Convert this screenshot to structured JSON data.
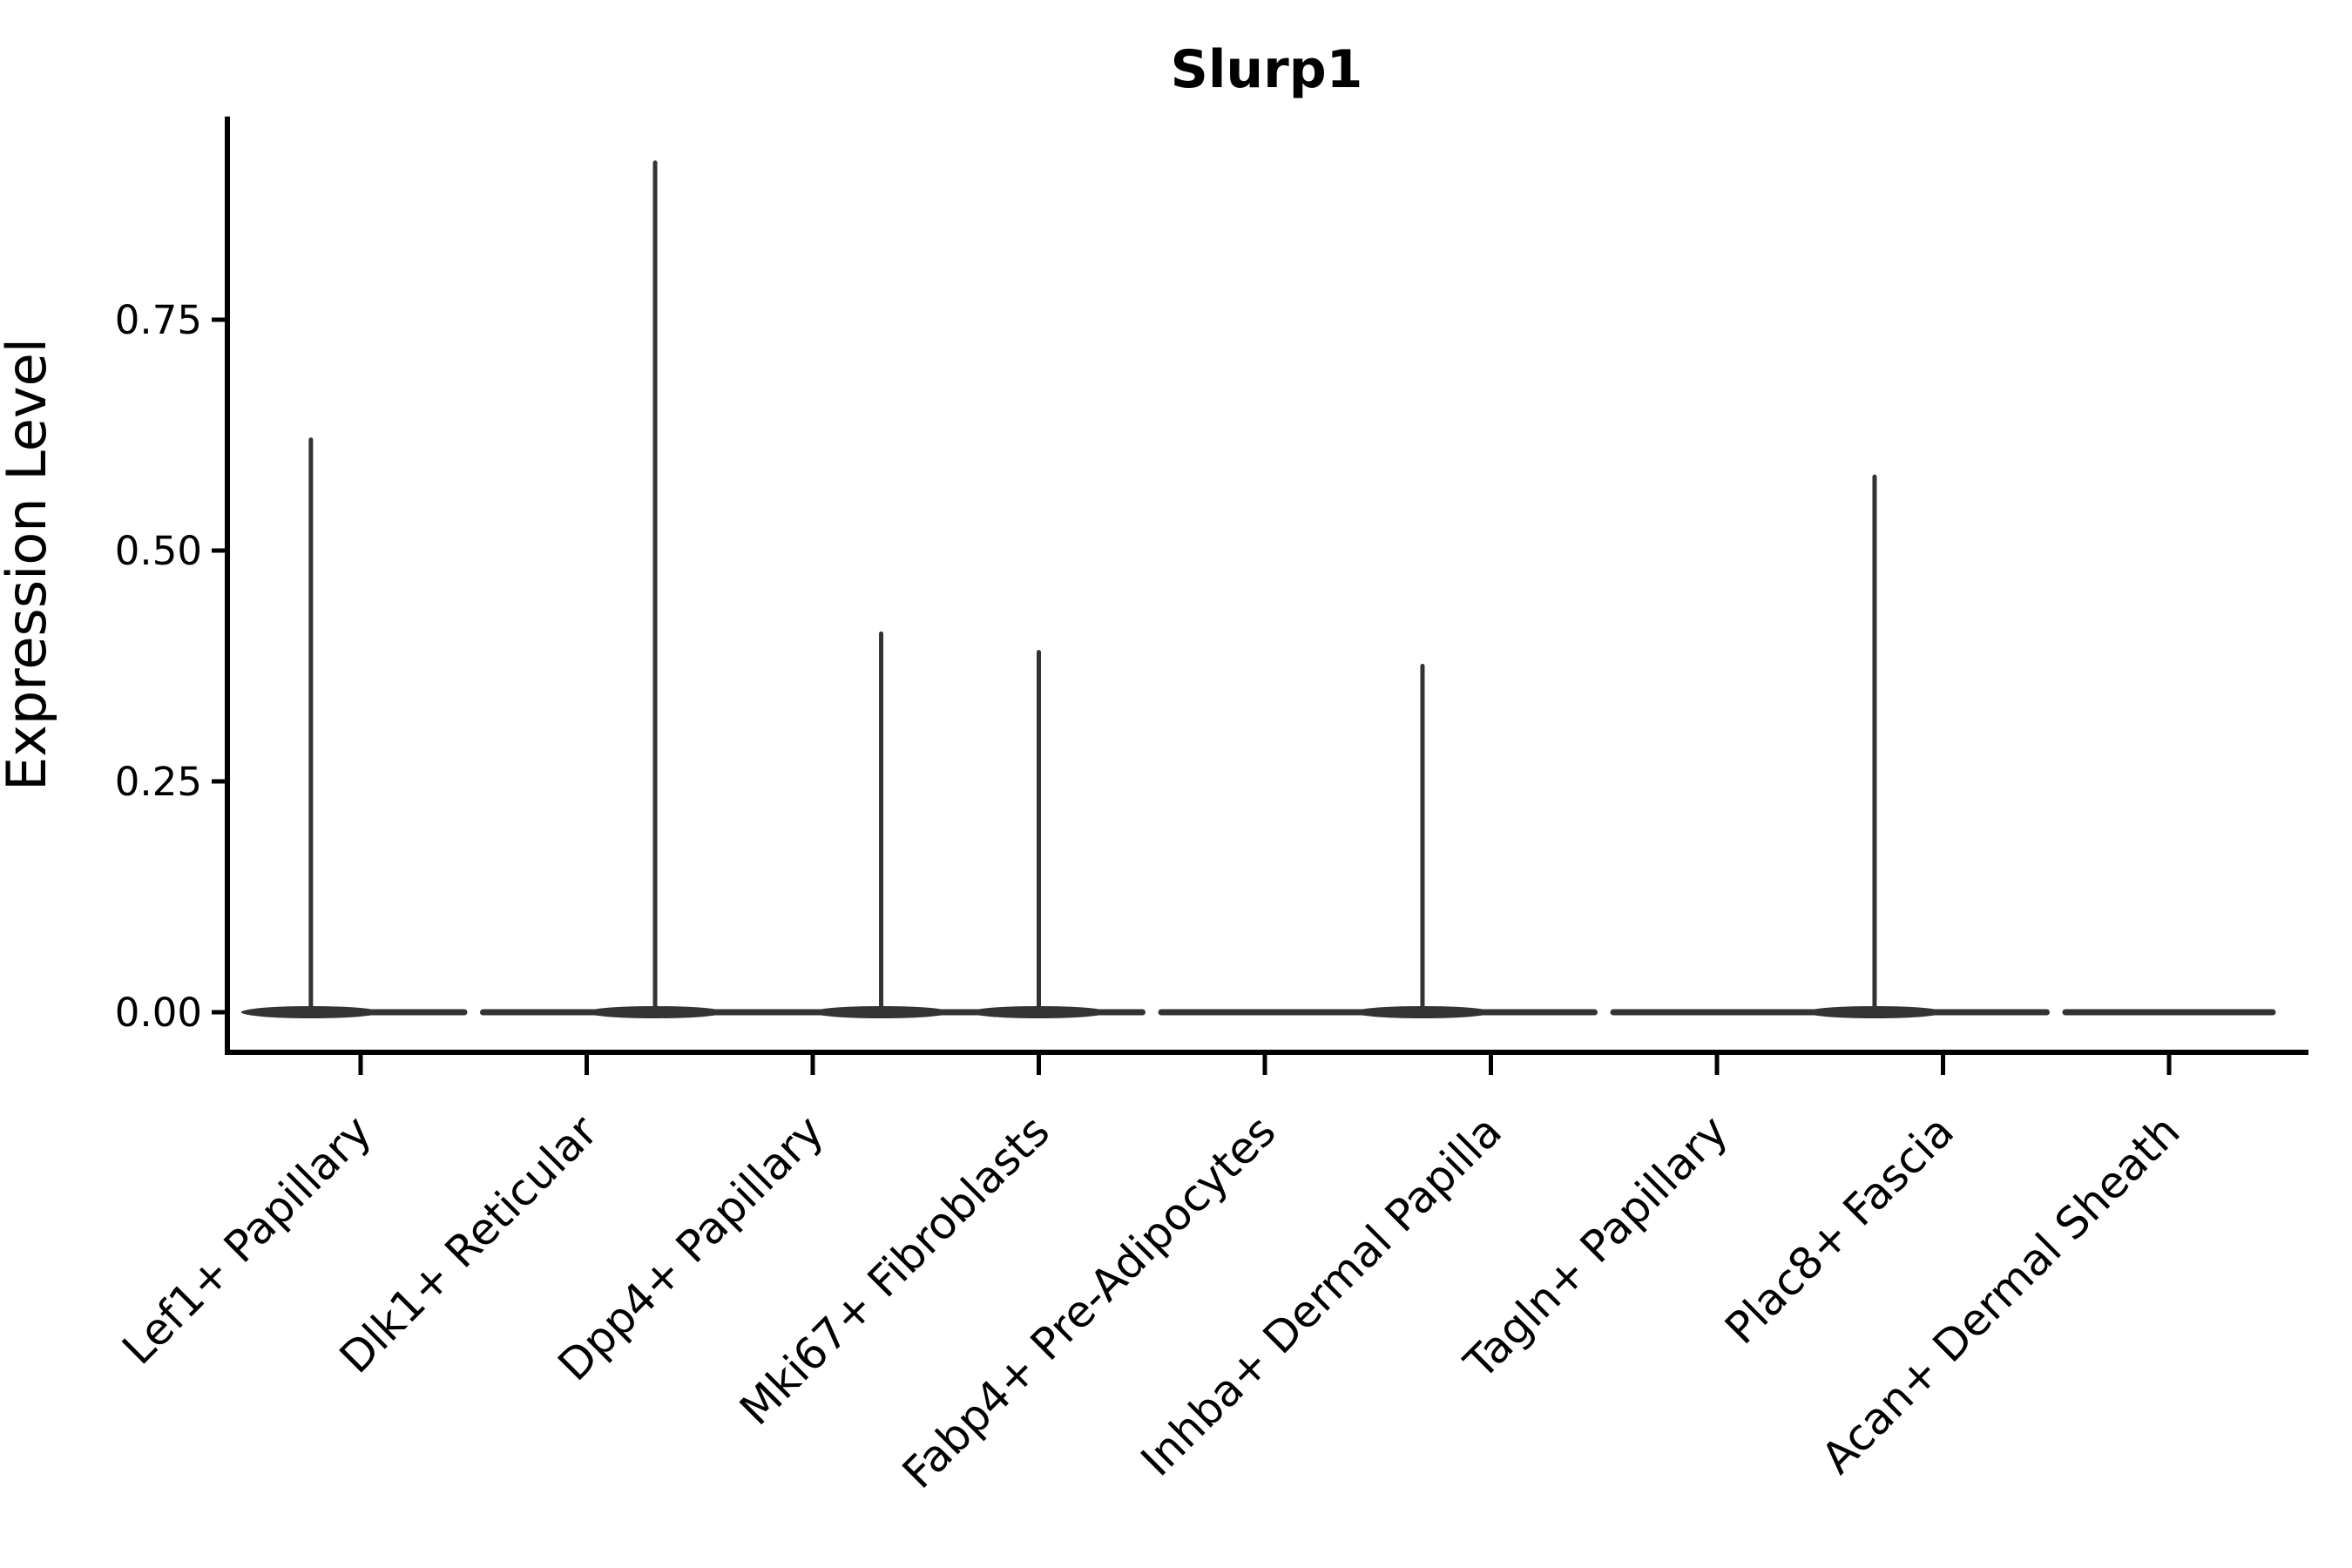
{
  "chart_data": {
    "type": "violin",
    "title": "Slurp1",
    "xlabel": "",
    "ylabel": "Expression Level",
    "categories": [
      "Lef1+ Papillary",
      "Dlk1+ Reticular",
      "Dpp4+ Papillary",
      "Mki67+ Fibroblasts",
      "Fabp4+ Pre-Adipocytes",
      "Inhba+ Dermal Papilla",
      "Tagln+ Papillary",
      "Plac8+ Fascia",
      "Acan+ Dermal Sheath"
    ],
    "series": [
      {
        "name": "Slurp1",
        "peak_values": [
          0.62,
          0.92,
          0.41,
          0.39,
          0,
          0.375,
          0,
          0.58,
          0
        ]
      }
    ],
    "spike_offset_frac": [
      0.26,
      0.83,
      0.83,
      0.5,
      null,
      0.17,
      null,
      0.17,
      null
    ],
    "baseline_value": 0.0,
    "y_ticks": {
      "values": [
        0,
        0.25,
        0.5,
        0.75
      ],
      "labels": [
        "0.00",
        "0.25",
        "0.50",
        "0.75"
      ]
    },
    "ylim": [
      0,
      0.97
    ],
    "grid": false,
    "legend": null,
    "colors": {
      "violin": "#333333",
      "axes": "#000000",
      "text": "#000000",
      "background": "#ffffff"
    }
  }
}
